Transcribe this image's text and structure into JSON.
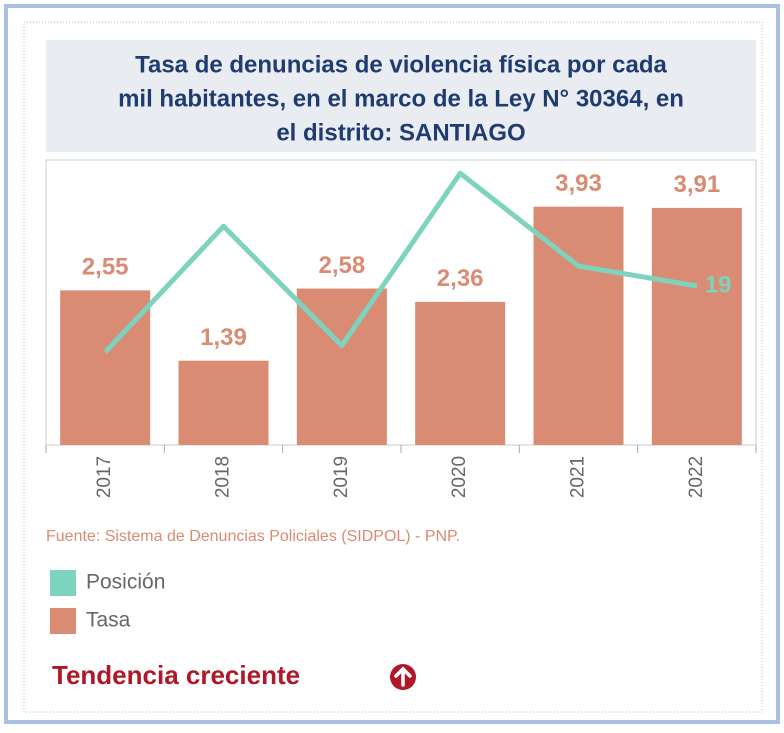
{
  "chart_data": {
    "type": "bar",
    "title": [
      "Tasa de denuncias de violencia física por cada",
      "mil habitantes, en el marco de la Ley N° 30364, en",
      "el distrito: SANTIAGO"
    ],
    "categories": [
      "2017",
      "2018",
      "2019",
      "2020",
      "2021",
      "2022"
    ],
    "series": [
      {
        "name": "Posición",
        "type": "line",
        "axis": "y2",
        "color": "#7dd3bd",
        "values": [
          29,
          10,
          28,
          2,
          16,
          19
        ]
      },
      {
        "name": "Tasa",
        "type": "bar",
        "color": "#d98b73",
        "values": [
          2.55,
          1.39,
          2.58,
          2.36,
          3.93,
          3.91
        ],
        "value_labels": [
          "2,55",
          "1,39",
          "2,58",
          "2,36",
          "3,93",
          "3,91"
        ]
      }
    ],
    "ylim": [
      0,
      4.7
    ],
    "y2lim": [
      43,
      0
    ],
    "source": "Fuente: Sistema de Denuncias Policiales (SIDPOL) - PNP.",
    "trend": "Tendencia creciente"
  }
}
